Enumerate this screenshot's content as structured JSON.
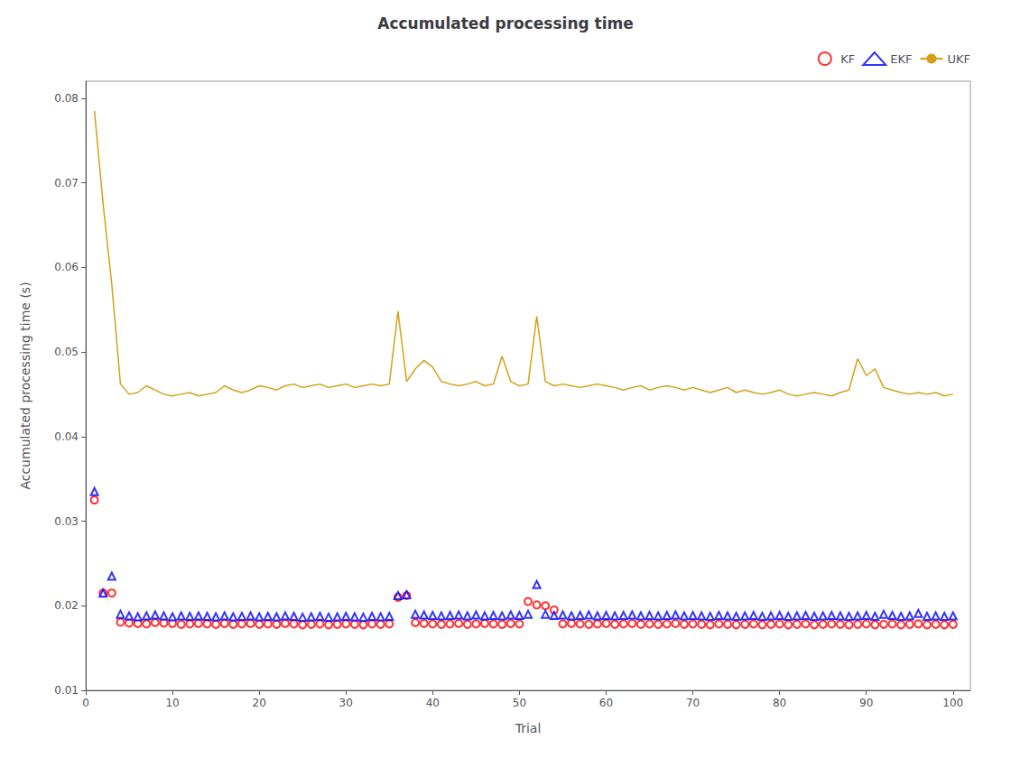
{
  "chart_data": {
    "type": "line",
    "title": "Accumulated processing time",
    "xlabel": "Trial",
    "ylabel": "Accumulated processing time (s)",
    "x": [
      1,
      2,
      3,
      4,
      5,
      6,
      7,
      8,
      9,
      10,
      11,
      12,
      13,
      14,
      15,
      16,
      17,
      18,
      19,
      20,
      21,
      22,
      23,
      24,
      25,
      26,
      27,
      28,
      29,
      30,
      31,
      32,
      33,
      34,
      35,
      36,
      37,
      38,
      39,
      40,
      41,
      42,
      43,
      44,
      45,
      46,
      47,
      48,
      49,
      50,
      51,
      52,
      53,
      54,
      55,
      56,
      57,
      58,
      59,
      60,
      61,
      62,
      63,
      64,
      65,
      66,
      67,
      68,
      69,
      70,
      71,
      72,
      73,
      74,
      75,
      76,
      77,
      78,
      79,
      80,
      81,
      82,
      83,
      84,
      85,
      86,
      87,
      88,
      89,
      90,
      91,
      92,
      93,
      94,
      95,
      96,
      97,
      98,
      99,
      100
    ],
    "xlim": [
      0,
      102
    ],
    "xticks": [
      0,
      10,
      20,
      30,
      40,
      50,
      60,
      70,
      80,
      90,
      100
    ],
    "ylim": [
      0.01,
      0.082
    ],
    "yticks": [
      0.01,
      0.02,
      0.03,
      0.04,
      0.05,
      0.06,
      0.07,
      0.08
    ],
    "grid": false,
    "legend": "upper right",
    "series": [
      {
        "name": "KF",
        "type": "scatter",
        "marker": "circle",
        "color": "#ff0000",
        "values": [
          0.0325,
          0.0215,
          0.0215,
          0.01805,
          0.01795,
          0.0179,
          0.01785,
          0.018,
          0.01795,
          0.0179,
          0.0178,
          0.01785,
          0.0179,
          0.01785,
          0.0178,
          0.0179,
          0.0178,
          0.01785,
          0.0179,
          0.0178,
          0.01785,
          0.0178,
          0.0179,
          0.01785,
          0.01775,
          0.0178,
          0.01785,
          0.01775,
          0.0178,
          0.01785,
          0.0178,
          0.01775,
          0.01785,
          0.0178,
          0.01785,
          0.021,
          0.0212,
          0.018,
          0.0179,
          0.01785,
          0.0178,
          0.01785,
          0.0179,
          0.0178,
          0.01785,
          0.0179,
          0.01785,
          0.0178,
          0.0179,
          0.01785,
          0.0205,
          0.0201,
          0.02,
          0.0195,
          0.01785,
          0.0179,
          0.01785,
          0.0178,
          0.01785,
          0.0179,
          0.0178,
          0.01785,
          0.0179,
          0.0178,
          0.01785,
          0.0178,
          0.01785,
          0.0179,
          0.0178,
          0.01785,
          0.0178,
          0.01775,
          0.01785,
          0.0178,
          0.01775,
          0.0178,
          0.01785,
          0.01775,
          0.0178,
          0.01785,
          0.01775,
          0.0178,
          0.01785,
          0.01775,
          0.0178,
          0.01785,
          0.0178,
          0.01775,
          0.0178,
          0.01785,
          0.01775,
          0.0178,
          0.01785,
          0.01775,
          0.0178,
          0.01785,
          0.01775,
          0.0178,
          0.01775,
          0.0178
        ]
      },
      {
        "name": "EKF",
        "type": "scatter",
        "marker": "triangle",
        "color": "#0000ff",
        "values": [
          0.0335,
          0.0215,
          0.0235,
          0.019,
          0.0188,
          0.0187,
          0.0188,
          0.0189,
          0.0188,
          0.0187,
          0.0188,
          0.01875,
          0.0188,
          0.01875,
          0.0187,
          0.0188,
          0.0187,
          0.01875,
          0.0188,
          0.0187,
          0.01875,
          0.0187,
          0.0188,
          0.01875,
          0.01865,
          0.0187,
          0.01875,
          0.01865,
          0.0187,
          0.01875,
          0.0187,
          0.01865,
          0.01875,
          0.0187,
          0.01875,
          0.0212,
          0.0213,
          0.019,
          0.0189,
          0.01885,
          0.0188,
          0.01885,
          0.0189,
          0.0188,
          0.0189,
          0.0188,
          0.01885,
          0.0188,
          0.0189,
          0.01885,
          0.019,
          0.0225,
          0.019,
          0.01885,
          0.0189,
          0.0188,
          0.01885,
          0.0189,
          0.0188,
          0.01885,
          0.0188,
          0.01885,
          0.0189,
          0.0188,
          0.01885,
          0.0188,
          0.01885,
          0.0189,
          0.0188,
          0.01885,
          0.0188,
          0.01875,
          0.01885,
          0.0188,
          0.01875,
          0.0188,
          0.01885,
          0.01875,
          0.0188,
          0.01885,
          0.01875,
          0.0188,
          0.01885,
          0.01875,
          0.0188,
          0.01885,
          0.0188,
          0.01875,
          0.0188,
          0.01885,
          0.01875,
          0.019,
          0.01885,
          0.01875,
          0.0188,
          0.0191,
          0.01875,
          0.0188,
          0.01875,
          0.0188
        ]
      },
      {
        "name": "UKF",
        "type": "line",
        "line_style": "solid",
        "color": "#d4a017",
        "values": [
          0.0785,
          0.0675,
          0.058,
          0.0462,
          0.045,
          0.0452,
          0.046,
          0.0455,
          0.045,
          0.0448,
          0.045,
          0.0452,
          0.0448,
          0.045,
          0.0452,
          0.046,
          0.0455,
          0.0452,
          0.0455,
          0.046,
          0.0458,
          0.0455,
          0.046,
          0.0462,
          0.0458,
          0.046,
          0.0462,
          0.0458,
          0.046,
          0.0462,
          0.0458,
          0.046,
          0.0462,
          0.046,
          0.0462,
          0.0548,
          0.0465,
          0.048,
          0.049,
          0.0482,
          0.0465,
          0.0462,
          0.046,
          0.0462,
          0.0465,
          0.046,
          0.0462,
          0.0495,
          0.0465,
          0.046,
          0.0462,
          0.0542,
          0.0465,
          0.046,
          0.0462,
          0.046,
          0.0458,
          0.046,
          0.0462,
          0.046,
          0.0458,
          0.0455,
          0.0458,
          0.046,
          0.0455,
          0.0458,
          0.046,
          0.0458,
          0.0455,
          0.0458,
          0.0455,
          0.0452,
          0.0455,
          0.0458,
          0.0452,
          0.0455,
          0.0452,
          0.045,
          0.0452,
          0.0455,
          0.045,
          0.0448,
          0.045,
          0.0452,
          0.045,
          0.0448,
          0.0452,
          0.0455,
          0.0492,
          0.0472,
          0.048,
          0.0458,
          0.0455,
          0.0452,
          0.045,
          0.0452,
          0.045,
          0.0452,
          0.0448,
          0.045
        ]
      }
    ]
  }
}
